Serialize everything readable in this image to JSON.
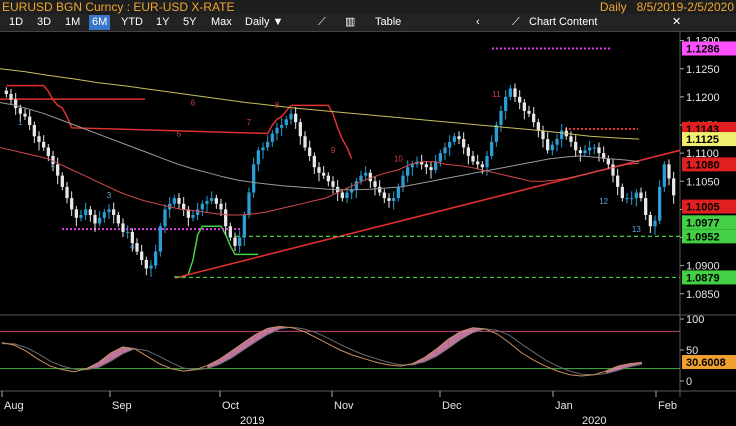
{
  "header": {
    "security": "EURUSD BGN Curncy : EUR-USD X-RATE",
    "periodicity": "Daily",
    "date_range": "8/5/2019-2/5/2020"
  },
  "toolbar": {
    "ranges": [
      "1D",
      "3D",
      "1M",
      "6M",
      "YTD",
      "1Y",
      "5Y",
      "Max"
    ],
    "active_range": "6M",
    "frequency": "Daily",
    "table_label": "Table",
    "chart_content_label": "Chart Content"
  },
  "colors": {
    "background": "#000000",
    "up_candle": "#2a9fd6",
    "down_candle": "#e8e8e8",
    "ma_50": "#d24a4a",
    "ma_100": "#9a9a9a",
    "ma_200": "#c8c060",
    "support_line": "#e03030",
    "trailing_stop_down": "#e03030",
    "trailing_stop_up": "#44d044",
    "td_count_up": "#d04040",
    "td_count_down": "#5aa8d8",
    "dotted_magenta": "#e040e0",
    "dashed_green": "#44d044",
    "stoch_k": "#c89060",
    "stoch_d": "#6a6a6a",
    "stoch_fill": "#e088b8",
    "stoch_upper": "#c04878",
    "stoch_lower": "#44b044"
  },
  "chart_data": [
    {
      "type": "candlestick",
      "title": "EUR-USD X-RATE",
      "y_axis_side": "right",
      "ylim": [
        1.083,
        1.131
      ],
      "y_ticks": [
        1.085,
        1.09,
        1.095,
        1.1,
        1.105,
        1.11,
        1.115,
        1.12,
        1.125,
        1.13
      ],
      "x_month_labels": [
        "Aug",
        "Sep",
        "Oct",
        "Nov",
        "Dec",
        "Jan",
        "Feb"
      ],
      "x_year_labels": [
        "2019",
        "2020"
      ],
      "close_series": [
        1.1205,
        1.1195,
        1.118,
        1.117,
        1.1165,
        1.115,
        1.113,
        1.112,
        1.111,
        1.1095,
        1.108,
        1.106,
        1.104,
        1.102,
        1.1,
        1.0985,
        1.099,
        1.1,
        1.099,
        1.0975,
        1.0985,
        1.0995,
        1.1,
        1.099,
        1.0975,
        1.096,
        1.096,
        1.094,
        1.0925,
        1.091,
        1.0895,
        1.09,
        1.0925,
        1.097,
        1.1,
        1.101,
        1.102,
        1.101,
        1.1,
        1.0985,
        1.099,
        1.1,
        1.101,
        1.1015,
        1.102,
        1.101,
        1.1,
        1.097,
        1.095,
        1.0935,
        1.095,
        1.099,
        1.103,
        1.108,
        1.1105,
        1.111,
        1.112,
        1.1135,
        1.1145,
        1.115,
        1.116,
        1.117,
        1.1155,
        1.113,
        1.111,
        1.1095,
        1.1075,
        1.1065,
        1.106,
        1.105,
        1.104,
        1.103,
        1.102,
        1.103,
        1.1035,
        1.105,
        1.106,
        1.1065,
        1.105,
        1.104,
        1.103,
        1.102,
        1.1015,
        1.102,
        1.104,
        1.106,
        1.1075,
        1.108,
        1.1085,
        1.108,
        1.1075,
        1.107,
        1.1085,
        1.11,
        1.111,
        1.112,
        1.113,
        1.1125,
        1.111,
        1.1095,
        1.1085,
        1.108,
        1.1075,
        1.1095,
        1.112,
        1.115,
        1.1175,
        1.12,
        1.1215,
        1.12,
        1.119,
        1.1175,
        1.117,
        1.1155,
        1.114,
        1.1125,
        1.1105,
        1.1115,
        1.1125,
        1.114,
        1.113,
        1.112,
        1.1105,
        1.11,
        1.1105,
        1.111,
        1.111,
        1.11,
        1.109,
        1.108,
        1.106,
        1.104,
        1.102,
        1.102,
        1.102,
        1.103,
        1.102,
        1.099,
        1.097,
        1.098,
        1.104,
        1.108,
        1.1055,
        1.1025
      ],
      "series": [
        {
          "name": "50-day MA",
          "values": [
            1.111,
            1.1105,
            1.11,
            1.1095,
            1.109,
            1.108,
            1.107,
            1.106,
            1.105,
            1.104,
            1.103,
            1.1022,
            1.1015,
            1.101,
            1.1005,
            1.1,
            1.0998,
            1.0995,
            1.0992,
            1.099,
            1.099,
            1.0992,
            1.0995,
            1.1,
            1.1005,
            1.101,
            1.1015,
            1.102,
            1.103,
            1.104,
            1.105,
            1.1058,
            1.1065,
            1.107,
            1.108,
            1.1085,
            1.1085,
            1.108,
            1.1078,
            1.1075,
            1.107,
            1.1065,
            1.106,
            1.1055,
            1.105,
            1.105,
            1.1052,
            1.1055,
            1.106,
            1.1065,
            1.107,
            1.1075,
            1.108,
            1.1082
          ]
        },
        {
          "name": "100-day MA",
          "values": [
            1.119,
            1.1185,
            1.1178,
            1.117,
            1.116,
            1.115,
            1.114,
            1.113,
            1.112,
            1.111,
            1.11,
            1.109,
            1.108,
            1.1072,
            1.1065,
            1.1058,
            1.1052,
            1.1048,
            1.1045,
            1.1042,
            1.104,
            1.1038,
            1.1036,
            1.1035,
            1.1035,
            1.1036,
            1.1038,
            1.104,
            1.1045,
            1.105,
            1.1055,
            1.106,
            1.1065,
            1.107,
            1.1075,
            1.108,
            1.1085,
            1.109,
            1.1093,
            1.1095,
            1.1093,
            1.109,
            1.1088,
            1.1085
          ]
        },
        {
          "name": "200-day MA",
          "values": [
            1.125,
            1.1245,
            1.1238,
            1.1232,
            1.1225,
            1.122,
            1.1214,
            1.1208,
            1.1202,
            1.1196,
            1.119,
            1.1185,
            1.118,
            1.1176,
            1.1172,
            1.1168,
            1.1164,
            1.116,
            1.1156,
            1.1152,
            1.1148,
            1.1144,
            1.114,
            1.1135,
            1.113,
            1.1127,
            1.1125
          ]
        }
      ],
      "price_labels": [
        {
          "value": 1.1286,
          "color": "#ff50ff"
        },
        {
          "value": 1.1143,
          "color": "#e02020"
        },
        {
          "value": 1.1125,
          "color": "#f0f070"
        },
        {
          "value": 1.108,
          "color": "#e02020"
        },
        {
          "value": 1.1005,
          "color": "#e02020"
        },
        {
          "value": 1.0977,
          "color": "#44d044"
        },
        {
          "value": 1.0952,
          "color": "#44d044"
        },
        {
          "value": 1.0879,
          "color": "#44d044"
        }
      ],
      "td_sequential_labels": [
        "1",
        "2",
        "3",
        "4",
        "5",
        "6",
        "7",
        "8",
        "9",
        "10",
        "11",
        "12",
        "13"
      ]
    },
    {
      "type": "line",
      "title": "Stochastic",
      "ylim": [
        0,
        100
      ],
      "y_ticks": [
        0,
        50,
        100
      ],
      "upper_band": 80,
      "lower_band": 20,
      "last_value_label": "30.6008",
      "series": [
        {
          "name": "%K",
          "values": [
            62,
            58,
            48,
            35,
            24,
            18,
            15,
            20,
            30,
            45,
            55,
            52,
            40,
            28,
            20,
            16,
            18,
            25,
            35,
            48,
            62,
            75,
            85,
            88,
            86,
            80,
            70,
            60,
            50,
            42,
            36,
            30,
            26,
            24,
            28,
            38,
            52,
            68,
            80,
            86,
            84,
            76,
            62,
            46,
            34,
            24,
            16,
            10,
            8,
            10,
            16,
            24,
            28,
            30
          ]
        },
        {
          "name": "%D",
          "values": [
            60,
            60,
            54,
            44,
            32,
            24,
            19,
            18,
            22,
            32,
            44,
            52,
            49,
            40,
            30,
            21,
            18,
            20,
            27,
            37,
            50,
            63,
            75,
            84,
            87,
            84,
            78,
            69,
            59,
            50,
            42,
            36,
            30,
            26,
            26,
            31,
            40,
            53,
            67,
            78,
            84,
            82,
            74,
            60,
            47,
            34,
            24,
            16,
            11,
            10,
            12,
            17,
            23,
            27
          ]
        }
      ]
    }
  ]
}
